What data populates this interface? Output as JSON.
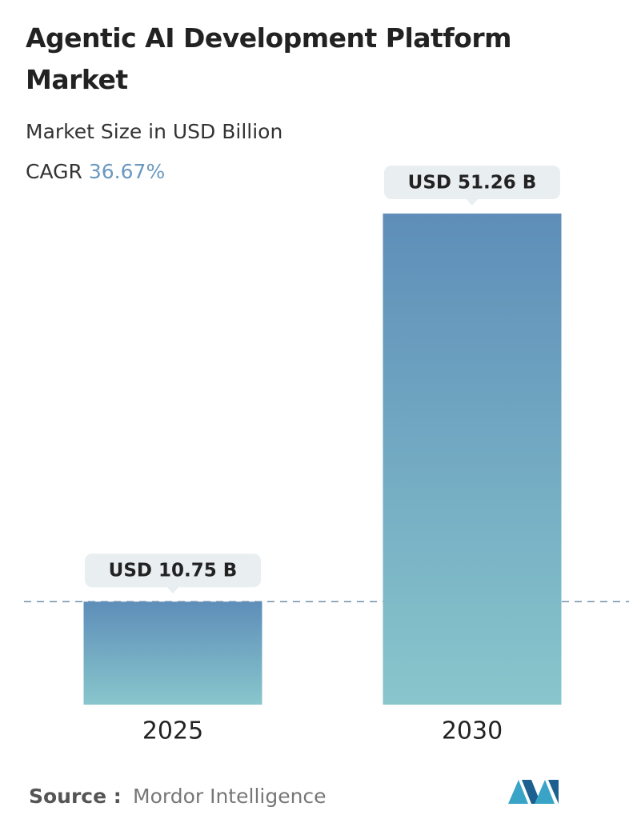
{
  "chart_data": {
    "type": "bar",
    "title": "Agentic AI Development Platform Market",
    "subtitle": "Market Size in USD Billion",
    "cagr_label": "CAGR",
    "cagr": "36.67%",
    "categories": [
      "2025",
      "2030"
    ],
    "values": [
      10.75,
      51.26
    ],
    "value_labels": [
      "USD 10.75 B",
      "USD 51.26 B"
    ],
    "gradient": [
      "#5e8eb9",
      "#88c6cc"
    ],
    "reference_line": true,
    "source_label": "Source :",
    "source": "Mordor Intelligence"
  }
}
